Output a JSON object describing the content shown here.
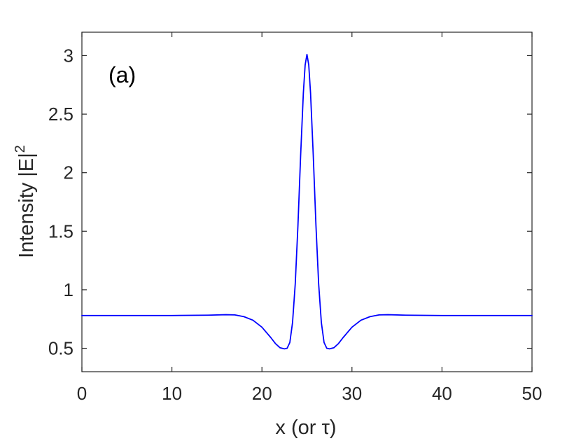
{
  "chart_data": {
    "type": "line",
    "title": "",
    "annotation": "(a)",
    "xlabel": "x (or τ)",
    "ylabel": "Intensity |E|",
    "ylabel_superscript": "2",
    "xlim": [
      0,
      50
    ],
    "ylim": [
      0.3,
      3.2
    ],
    "xticks": [
      0,
      10,
      20,
      30,
      40,
      50
    ],
    "xtick_labels": [
      "0",
      "10",
      "20",
      "30",
      "40",
      "50"
    ],
    "yticks": [
      0.5,
      1,
      1.5,
      2,
      2.5,
      3
    ],
    "ytick_labels": [
      "0.5",
      "1",
      "1.5",
      "2",
      "2.5",
      "3"
    ],
    "grid": false,
    "legend": "none",
    "series": [
      {
        "color": "#0000ff",
        "x": [
          0,
          5,
          10,
          14,
          16,
          17,
          18,
          19,
          20,
          21,
          21.5,
          22,
          22.5,
          22.8,
          23.1,
          23.4,
          23.7,
          24.0,
          24.3,
          24.6,
          24.8,
          25.0,
          25.2,
          25.4,
          25.7,
          26.0,
          26.3,
          26.6,
          26.9,
          27.2,
          27.5,
          28,
          28.5,
          29,
          30,
          31,
          32,
          33,
          34,
          36,
          40,
          45,
          50
        ],
        "y": [
          0.78,
          0.78,
          0.78,
          0.783,
          0.787,
          0.785,
          0.77,
          0.74,
          0.68,
          0.59,
          0.54,
          0.505,
          0.495,
          0.5,
          0.55,
          0.72,
          1.05,
          1.55,
          2.15,
          2.68,
          2.92,
          3.01,
          2.92,
          2.68,
          2.15,
          1.55,
          1.05,
          0.72,
          0.55,
          0.5,
          0.495,
          0.505,
          0.54,
          0.59,
          0.68,
          0.74,
          0.77,
          0.785,
          0.787,
          0.783,
          0.78,
          0.78,
          0.78
        ]
      }
    ]
  }
}
